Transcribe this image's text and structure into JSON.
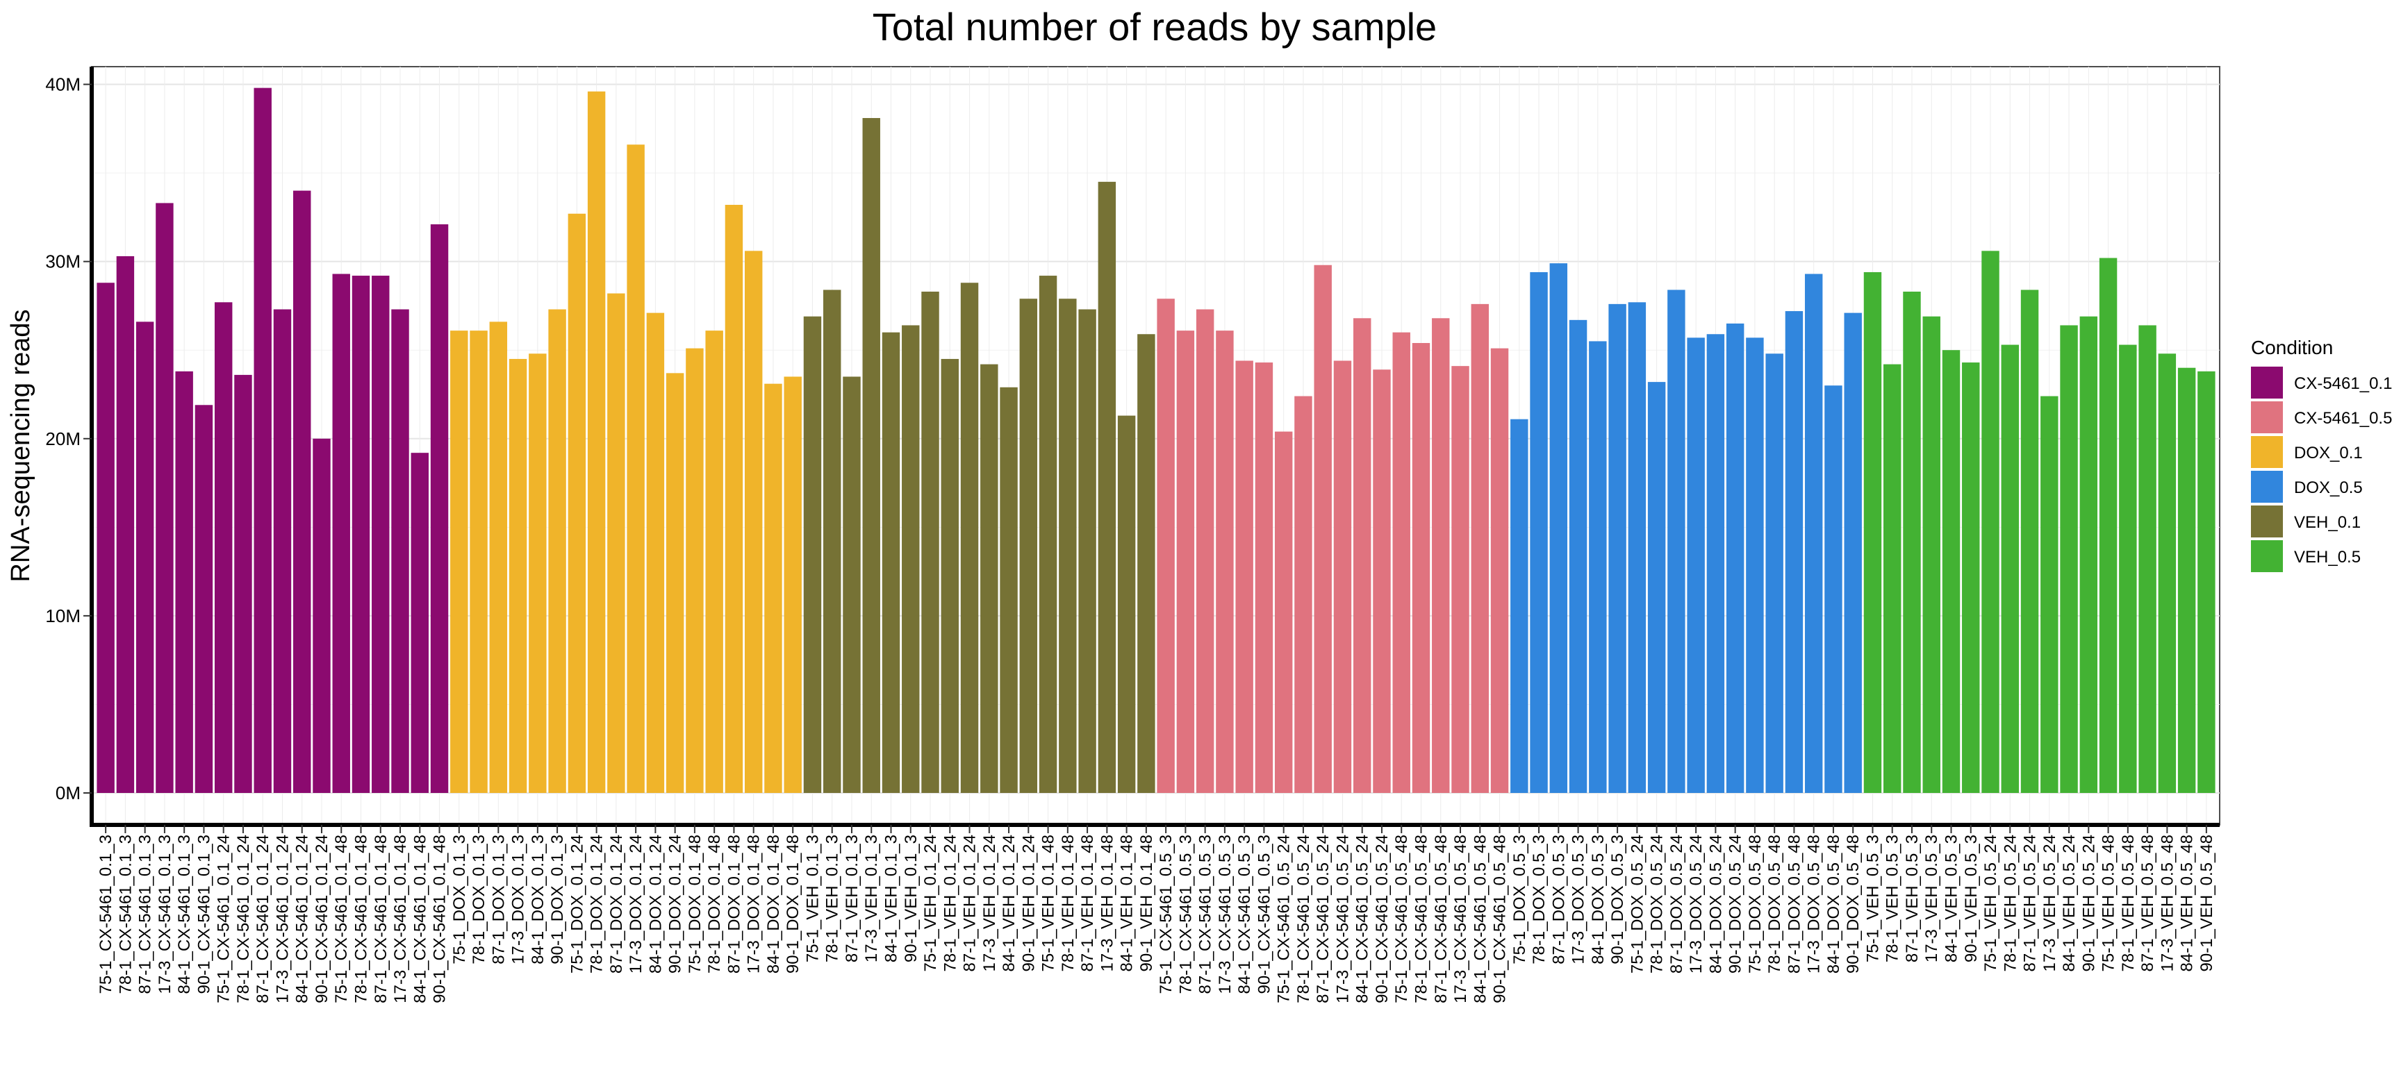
{
  "chart_data": {
    "type": "bar",
    "title": "Total number of reads by sample",
    "xlabel": "",
    "ylabel": "RNA-sequencing reads",
    "ylim": [
      0,
      41000000
    ],
    "yticks": [
      {
        "value": 0,
        "label": "0M"
      },
      {
        "value": 10000000,
        "label": "10M"
      },
      {
        "value": 20000000,
        "label": "20M"
      },
      {
        "value": 30000000,
        "label": "30M"
      },
      {
        "value": 40000000,
        "label": "40M"
      }
    ],
    "grid": true,
    "legend": {
      "title": "Condition",
      "position": "right",
      "entries": [
        {
          "name": "CX-5461_0.1",
          "color": "#8B0A6F"
        },
        {
          "name": "CX-5461_0.5",
          "color": "#E0737F"
        },
        {
          "name": "DOX_0.1",
          "color": "#F0B42A"
        },
        {
          "name": "DOX_0.5",
          "color": "#3186DD"
        },
        {
          "name": "VEH_0.1",
          "color": "#767235"
        },
        {
          "name": "VEH_0.5",
          "color": "#43B233"
        }
      ]
    },
    "bars": [
      {
        "label": "75-1_CX-5461_0.1_3",
        "value": 28800000,
        "condition": "CX-5461_0.1"
      },
      {
        "label": "78-1_CX-5461_0.1_3",
        "value": 30300000,
        "condition": "CX-5461_0.1"
      },
      {
        "label": "87-1_CX-5461_0.1_3",
        "value": 26600000,
        "condition": "CX-5461_0.1"
      },
      {
        "label": "17-3_CX-5461_0.1_3",
        "value": 33300000,
        "condition": "CX-5461_0.1"
      },
      {
        "label": "84-1_CX-5461_0.1_3",
        "value": 23800000,
        "condition": "CX-5461_0.1"
      },
      {
        "label": "90-1_CX-5461_0.1_3",
        "value": 21900000,
        "condition": "CX-5461_0.1"
      },
      {
        "label": "75-1_CX-5461_0.1_24",
        "value": 27700000,
        "condition": "CX-5461_0.1"
      },
      {
        "label": "78-1_CX-5461_0.1_24",
        "value": 23600000,
        "condition": "CX-5461_0.1"
      },
      {
        "label": "87-1_CX-5461_0.1_24",
        "value": 39800000,
        "condition": "CX-5461_0.1"
      },
      {
        "label": "17-3_CX-5461_0.1_24",
        "value": 27300000,
        "condition": "CX-5461_0.1"
      },
      {
        "label": "84-1_CX-5461_0.1_24",
        "value": 34000000,
        "condition": "CX-5461_0.1"
      },
      {
        "label": "90-1_CX-5461_0.1_24",
        "value": 20000000,
        "condition": "CX-5461_0.1"
      },
      {
        "label": "75-1_CX-5461_0.1_48",
        "value": 29300000,
        "condition": "CX-5461_0.1"
      },
      {
        "label": "78-1_CX-5461_0.1_48",
        "value": 29200000,
        "condition": "CX-5461_0.1"
      },
      {
        "label": "87-1_CX-5461_0.1_48",
        "value": 29200000,
        "condition": "CX-5461_0.1"
      },
      {
        "label": "17-3_CX-5461_0.1_48",
        "value": 27300000,
        "condition": "CX-5461_0.1"
      },
      {
        "label": "84-1_CX-5461_0.1_48",
        "value": 19200000,
        "condition": "CX-5461_0.1"
      },
      {
        "label": "90-1_CX-5461_0.1_48",
        "value": 32100000,
        "condition": "CX-5461_0.1"
      },
      {
        "label": "75-1_DOX_0.1_3",
        "value": 26100000,
        "condition": "DOX_0.1"
      },
      {
        "label": "78-1_DOX_0.1_3",
        "value": 26100000,
        "condition": "DOX_0.1"
      },
      {
        "label": "87-1_DOX_0.1_3",
        "value": 26600000,
        "condition": "DOX_0.1"
      },
      {
        "label": "17-3_DOX_0.1_3",
        "value": 24500000,
        "condition": "DOX_0.1"
      },
      {
        "label": "84-1_DOX_0.1_3",
        "value": 24800000,
        "condition": "DOX_0.1"
      },
      {
        "label": "90-1_DOX_0.1_3",
        "value": 27300000,
        "condition": "DOX_0.1"
      },
      {
        "label": "75-1_DOX_0.1_24",
        "value": 32700000,
        "condition": "DOX_0.1"
      },
      {
        "label": "78-1_DOX_0.1_24",
        "value": 39600000,
        "condition": "DOX_0.1"
      },
      {
        "label": "87-1_DOX_0.1_24",
        "value": 28200000,
        "condition": "DOX_0.1"
      },
      {
        "label": "17-3_DOX_0.1_24",
        "value": 36600000,
        "condition": "DOX_0.1"
      },
      {
        "label": "84-1_DOX_0.1_24",
        "value": 27100000,
        "condition": "DOX_0.1"
      },
      {
        "label": "90-1_DOX_0.1_24",
        "value": 23700000,
        "condition": "DOX_0.1"
      },
      {
        "label": "75-1_DOX_0.1_48",
        "value": 25100000,
        "condition": "DOX_0.1"
      },
      {
        "label": "78-1_DOX_0.1_48",
        "value": 26100000,
        "condition": "DOX_0.1"
      },
      {
        "label": "87-1_DOX_0.1_48",
        "value": 33200000,
        "condition": "DOX_0.1"
      },
      {
        "label": "17-3_DOX_0.1_48",
        "value": 30600000,
        "condition": "DOX_0.1"
      },
      {
        "label": "84-1_DOX_0.1_48",
        "value": 23100000,
        "condition": "DOX_0.1"
      },
      {
        "label": "90-1_DOX_0.1_48",
        "value": 23500000,
        "condition": "DOX_0.1"
      },
      {
        "label": "75-1_VEH_0.1_3",
        "value": 26900000,
        "condition": "VEH_0.1"
      },
      {
        "label": "78-1_VEH_0.1_3",
        "value": 28400000,
        "condition": "VEH_0.1"
      },
      {
        "label": "87-1_VEH_0.1_3",
        "value": 23500000,
        "condition": "VEH_0.1"
      },
      {
        "label": "17-3_VEH_0.1_3",
        "value": 38100000,
        "condition": "VEH_0.1"
      },
      {
        "label": "84-1_VEH_0.1_3",
        "value": 26000000,
        "condition": "VEH_0.1"
      },
      {
        "label": "90-1_VEH_0.1_3",
        "value": 26400000,
        "condition": "VEH_0.1"
      },
      {
        "label": "75-1_VEH_0.1_24",
        "value": 28300000,
        "condition": "VEH_0.1"
      },
      {
        "label": "78-1_VEH_0.1_24",
        "value": 24500000,
        "condition": "VEH_0.1"
      },
      {
        "label": "87-1_VEH_0.1_24",
        "value": 28800000,
        "condition": "VEH_0.1"
      },
      {
        "label": "17-3_VEH_0.1_24",
        "value": 24200000,
        "condition": "VEH_0.1"
      },
      {
        "label": "84-1_VEH_0.1_24",
        "value": 22900000,
        "condition": "VEH_0.1"
      },
      {
        "label": "90-1_VEH_0.1_24",
        "value": 27900000,
        "condition": "VEH_0.1"
      },
      {
        "label": "75-1_VEH_0.1_48",
        "value": 29200000,
        "condition": "VEH_0.1"
      },
      {
        "label": "78-1_VEH_0.1_48",
        "value": 27900000,
        "condition": "VEH_0.1"
      },
      {
        "label": "87-1_VEH_0.1_48",
        "value": 27300000,
        "condition": "VEH_0.1"
      },
      {
        "label": "17-3_VEH_0.1_48",
        "value": 34500000,
        "condition": "VEH_0.1"
      },
      {
        "label": "84-1_VEH_0.1_48",
        "value": 21300000,
        "condition": "VEH_0.1"
      },
      {
        "label": "90-1_VEH_0.1_48",
        "value": 25900000,
        "condition": "VEH_0.1"
      },
      {
        "label": "75-1_CX-5461_0.5_3",
        "value": 27900000,
        "condition": "CX-5461_0.5"
      },
      {
        "label": "78-1_CX-5461_0.5_3",
        "value": 26100000,
        "condition": "CX-5461_0.5"
      },
      {
        "label": "87-1_CX-5461_0.5_3",
        "value": 27300000,
        "condition": "CX-5461_0.5"
      },
      {
        "label": "17-3_CX-5461_0.5_3",
        "value": 26100000,
        "condition": "CX-5461_0.5"
      },
      {
        "label": "84-1_CX-5461_0.5_3",
        "value": 24400000,
        "condition": "CX-5461_0.5"
      },
      {
        "label": "90-1_CX-5461_0.5_3",
        "value": 24300000,
        "condition": "CX-5461_0.5"
      },
      {
        "label": "75-1_CX-5461_0.5_24",
        "value": 20400000,
        "condition": "CX-5461_0.5"
      },
      {
        "label": "78-1_CX-5461_0.5_24",
        "value": 22400000,
        "condition": "CX-5461_0.5"
      },
      {
        "label": "87-1_CX-5461_0.5_24",
        "value": 29800000,
        "condition": "CX-5461_0.5"
      },
      {
        "label": "17-3_CX-5461_0.5_24",
        "value": 24400000,
        "condition": "CX-5461_0.5"
      },
      {
        "label": "84-1_CX-5461_0.5_24",
        "value": 26800000,
        "condition": "CX-5461_0.5"
      },
      {
        "label": "90-1_CX-5461_0.5_24",
        "value": 23900000,
        "condition": "CX-5461_0.5"
      },
      {
        "label": "75-1_CX-5461_0.5_48",
        "value": 26000000,
        "condition": "CX-5461_0.5"
      },
      {
        "label": "78-1_CX-5461_0.5_48",
        "value": 25400000,
        "condition": "CX-5461_0.5"
      },
      {
        "label": "87-1_CX-5461_0.5_48",
        "value": 26800000,
        "condition": "CX-5461_0.5"
      },
      {
        "label": "17-3_CX-5461_0.5_48",
        "value": 24100000,
        "condition": "CX-5461_0.5"
      },
      {
        "label": "84-1_CX-5461_0.5_48",
        "value": 27600000,
        "condition": "CX-5461_0.5"
      },
      {
        "label": "90-1_CX-5461_0.5_48",
        "value": 25100000,
        "condition": "CX-5461_0.5"
      },
      {
        "label": "75-1_DOX_0.5_3",
        "value": 21100000,
        "condition": "DOX_0.5"
      },
      {
        "label": "78-1_DOX_0.5_3",
        "value": 29400000,
        "condition": "DOX_0.5"
      },
      {
        "label": "87-1_DOX_0.5_3",
        "value": 29900000,
        "condition": "DOX_0.5"
      },
      {
        "label": "17-3_DOX_0.5_3",
        "value": 26700000,
        "condition": "DOX_0.5"
      },
      {
        "label": "84-1_DOX_0.5_3",
        "value": 25500000,
        "condition": "DOX_0.5"
      },
      {
        "label": "90-1_DOX_0.5_3",
        "value": 27600000,
        "condition": "DOX_0.5"
      },
      {
        "label": "75-1_DOX_0.5_24",
        "value": 27700000,
        "condition": "DOX_0.5"
      },
      {
        "label": "78-1_DOX_0.5_24",
        "value": 23200000,
        "condition": "DOX_0.5"
      },
      {
        "label": "87-1_DOX_0.5_24",
        "value": 28400000,
        "condition": "DOX_0.5"
      },
      {
        "label": "17-3_DOX_0.5_24",
        "value": 25700000,
        "condition": "DOX_0.5"
      },
      {
        "label": "84-1_DOX_0.5_24",
        "value": 25900000,
        "condition": "DOX_0.5"
      },
      {
        "label": "90-1_DOX_0.5_24",
        "value": 26500000,
        "condition": "DOX_0.5"
      },
      {
        "label": "75-1_DOX_0.5_48",
        "value": 25700000,
        "condition": "DOX_0.5"
      },
      {
        "label": "78-1_DOX_0.5_48",
        "value": 24800000,
        "condition": "DOX_0.5"
      },
      {
        "label": "87-1_DOX_0.5_48",
        "value": 27200000,
        "condition": "DOX_0.5"
      },
      {
        "label": "17-3_DOX_0.5_48",
        "value": 29300000,
        "condition": "DOX_0.5"
      },
      {
        "label": "84-1_DOX_0.5_48",
        "value": 23000000,
        "condition": "DOX_0.5"
      },
      {
        "label": "90-1_DOX_0.5_48",
        "value": 27100000,
        "condition": "DOX_0.5"
      },
      {
        "label": "75-1_VEH_0.5_3",
        "value": 29400000,
        "condition": "VEH_0.5"
      },
      {
        "label": "78-1_VEH_0.5_3",
        "value": 24200000,
        "condition": "VEH_0.5"
      },
      {
        "label": "87-1_VEH_0.5_3",
        "value": 28300000,
        "condition": "VEH_0.5"
      },
      {
        "label": "17-3_VEH_0.5_3",
        "value": 26900000,
        "condition": "VEH_0.5"
      },
      {
        "label": "84-1_VEH_0.5_3",
        "value": 25000000,
        "condition": "VEH_0.5"
      },
      {
        "label": "90-1_VEH_0.5_3",
        "value": 24300000,
        "condition": "VEH_0.5"
      },
      {
        "label": "75-1_VEH_0.5_24",
        "value": 30600000,
        "condition": "VEH_0.5"
      },
      {
        "label": "78-1_VEH_0.5_24",
        "value": 25300000,
        "condition": "VEH_0.5"
      },
      {
        "label": "87-1_VEH_0.5_24",
        "value": 28400000,
        "condition": "VEH_0.5"
      },
      {
        "label": "17-3_VEH_0.5_24",
        "value": 22400000,
        "condition": "VEH_0.5"
      },
      {
        "label": "84-1_VEH_0.5_24",
        "value": 26400000,
        "condition": "VEH_0.5"
      },
      {
        "label": "90-1_VEH_0.5_24",
        "value": 26900000,
        "condition": "VEH_0.5"
      },
      {
        "label": "75-1_VEH_0.5_48",
        "value": 30200000,
        "condition": "VEH_0.5"
      },
      {
        "label": "78-1_VEH_0.5_48",
        "value": 25300000,
        "condition": "VEH_0.5"
      },
      {
        "label": "87-1_VEH_0.5_48",
        "value": 26400000,
        "condition": "VEH_0.5"
      },
      {
        "label": "17-3_VEH_0.5_48",
        "value": 24800000,
        "condition": "VEH_0.5"
      },
      {
        "label": "84-1_VEH_0.5_48",
        "value": 24000000,
        "condition": "VEH_0.5"
      },
      {
        "label": "90-1_VEH_0.5_48",
        "value": 23800000,
        "condition": "VEH_0.5"
      }
    ]
  }
}
